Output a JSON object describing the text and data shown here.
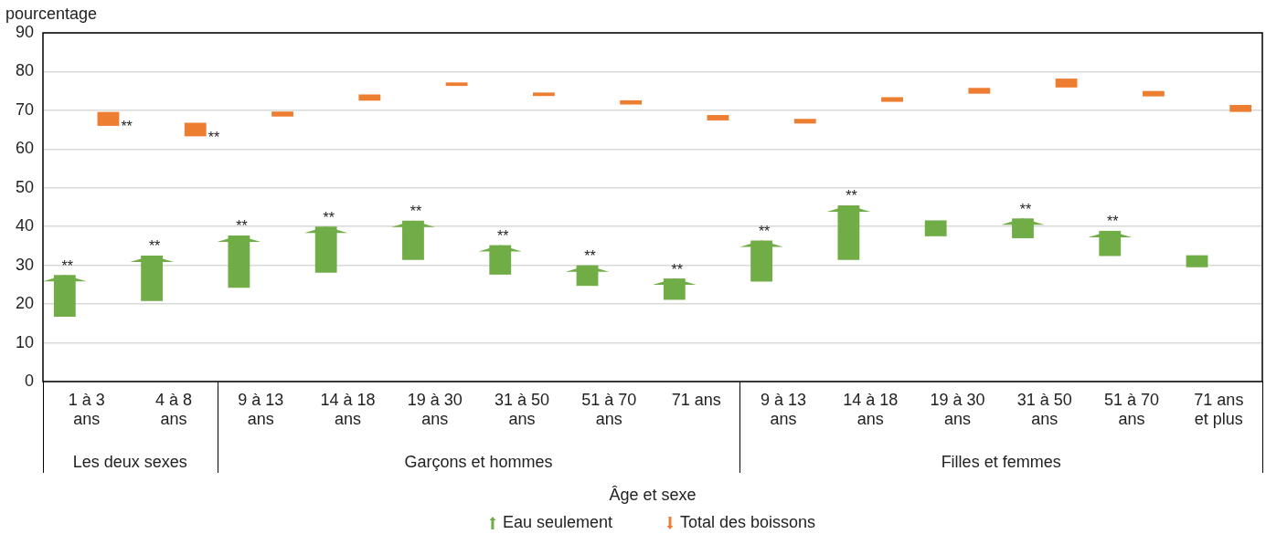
{
  "chart_data": {
    "type": "bar",
    "ylabel": "pourcentage",
    "xlabel": "Âge et sexe",
    "categories": [
      "1 à 3\nans",
      "4 à 8\nans",
      "9 à 13\nans",
      "14 à 18\nans",
      "19 à 30\nans",
      "31 à 50\nans",
      "51 à 70\nans",
      "71 ans",
      "9 à 13\nans",
      "14 à 18\nans",
      "19 à 30\nans",
      "31 à 50\nans",
      "51 à 70\nans",
      "71 ans\net plus"
    ],
    "annotations": [
      "Les deux sexes",
      "Garçons et hommes",
      "Filles et femmes"
    ],
    "series": [
      {
        "name": "Eau seulement",
        "color": "#70ad47",
        "base": [
          16.7,
          20.8,
          24.2,
          28.1,
          31.4,
          27.6,
          24.7,
          21.1,
          25.8,
          31.4,
          37.5,
          37.0,
          32.4,
          29.5
        ],
        "values": [
          10.8,
          11.7,
          13.5,
          11.9,
          10.1,
          7.6,
          5.3,
          5.5,
          10.6,
          14.1,
          4.1,
          5.1,
          6.5,
          3.1
        ],
        "value_labels": [
          "**",
          "**",
          "**",
          "**",
          "**",
          "**",
          "**",
          "**",
          "**",
          "**",
          null,
          "**",
          "**",
          null
        ]
      },
      {
        "name": "Total des boissons",
        "color": "#ed7d31",
        "base": [
          69.6,
          66.8,
          69.7,
          74.1,
          77.2,
          74.6,
          72.6,
          68.8,
          67.8,
          73.4,
          75.8,
          78.2,
          75.0,
          71.4
        ],
        "values": [
          -3.6,
          -3.5,
          -1.3,
          -1.6,
          -0.9,
          -0.9,
          -1.1,
          -1.4,
          -1.2,
          -1.2,
          -1.5,
          -2.3,
          -1.4,
          -1.8
        ],
        "value_labels": [
          "**",
          "**",
          null,
          null,
          null,
          null,
          null,
          null,
          null,
          null,
          null,
          null,
          null,
          null
        ]
      }
    ],
    "ylim": [
      0,
      90
    ],
    "yticks": [
      0,
      10,
      20,
      30,
      40,
      50,
      60,
      70,
      80,
      90
    ],
    "grid": "y",
    "legend": "bottom"
  }
}
